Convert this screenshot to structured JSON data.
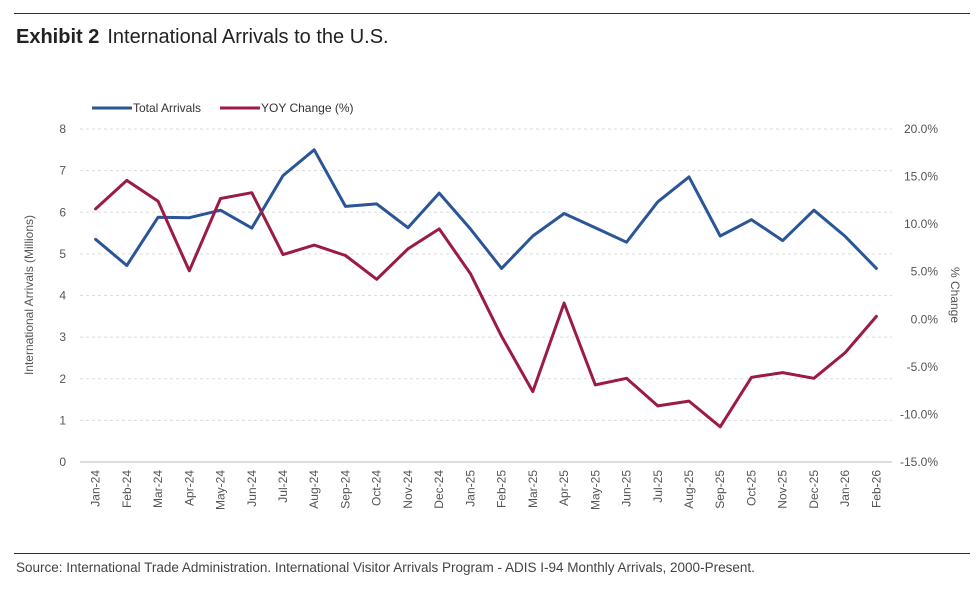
{
  "header": {
    "exhibit": "Exhibit 2",
    "title": "International Arrivals to the U.S."
  },
  "footer": {
    "source": "Source: International Trade Administration. International Visitor Arrivals Program - ADIS I-94 Monthly Arrivals, 2000-Present."
  },
  "chart_data": {
    "type": "line",
    "x": [
      "Jan-24",
      "Feb-24",
      "Mar-24",
      "Apr-24",
      "May-24",
      "Jun-24",
      "Jul-24",
      "Aug-24",
      "Sep-24",
      "Oct-24",
      "Nov-24",
      "Dec-24",
      "Jan-25",
      "Feb-25",
      "Mar-25",
      "Apr-25",
      "May-25",
      "Jun-25",
      "Jul-25",
      "Aug-25",
      "Sep-25",
      "Oct-25",
      "Nov-25",
      "Dec-25",
      "Jan-26",
      "Feb-26"
    ],
    "series": [
      {
        "name": "Total Arrivals",
        "axis": "left",
        "color": "#2a5597",
        "values": [
          5.35,
          4.72,
          5.88,
          5.87,
          6.05,
          5.62,
          6.88,
          7.5,
          6.14,
          6.2,
          5.63,
          6.46,
          5.6,
          4.65,
          5.43,
          5.97,
          5.63,
          5.28,
          6.25,
          6.85,
          5.43,
          5.82,
          5.32,
          6.05,
          5.42,
          4.65
        ]
      },
      {
        "name": "YOY Change (%)",
        "axis": "right",
        "color": "#9b1b46",
        "values": [
          11.6,
          14.6,
          12.4,
          5.1,
          12.7,
          13.3,
          6.8,
          7.8,
          6.7,
          4.2,
          7.4,
          9.5,
          4.8,
          -1.8,
          -7.6,
          1.7,
          -6.9,
          -6.2,
          -9.1,
          -8.6,
          -11.3,
          -6.1,
          -5.6,
          -6.2,
          -3.5,
          0.3
        ]
      }
    ],
    "ylabel": "International Arrivals (Millions)",
    "ylim": [
      0,
      8
    ],
    "yticks": [
      "0",
      "1",
      "2",
      "3",
      "4",
      "5",
      "6",
      "7",
      "8"
    ],
    "y2label": "% Change",
    "y2lim": [
      -15,
      20
    ],
    "y2ticks": [
      "-15.0%",
      "-10.0%",
      "-5.0%",
      "0.0%",
      "5.0%",
      "10.0%",
      "15.0%",
      "20.0%"
    ],
    "grid": true,
    "legend_position": "top-left"
  }
}
